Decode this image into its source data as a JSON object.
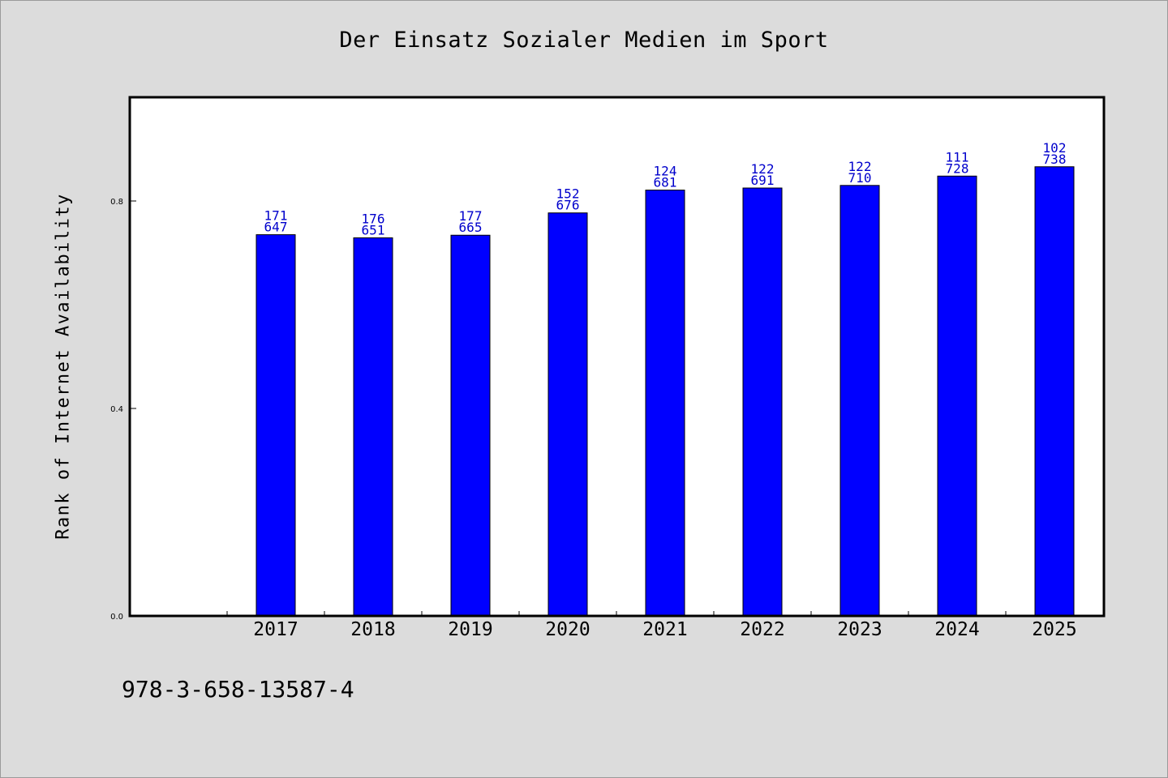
{
  "chart_data": {
    "type": "bar",
    "title": "Der Einsatz Sozialer Medien im Sport",
    "ylabel": "Rank of Internet Availability",
    "xlabel": "",
    "categories": [
      "2017",
      "2018",
      "2019",
      "2020",
      "2021",
      "2022",
      "2023",
      "2024",
      "2025"
    ],
    "values": [
      0.735,
      0.729,
      0.734,
      0.777,
      0.821,
      0.825,
      0.83,
      0.848,
      0.866
    ],
    "data_labels": [
      [
        "171",
        "647"
      ],
      [
        "176",
        "651"
      ],
      [
        "177",
        "665"
      ],
      [
        "152",
        "676"
      ],
      [
        "124",
        "681"
      ],
      [
        "122",
        "691"
      ],
      [
        "122",
        "710"
      ],
      [
        "111",
        "728"
      ],
      [
        "102",
        "738"
      ]
    ],
    "ylim": [
      0,
      1.0
    ],
    "yticks": [
      {
        "value": 0.0,
        "label": "0.0"
      },
      {
        "value": 0.4,
        "label": "0.4"
      },
      {
        "value": 0.8,
        "label": "0.8"
      }
    ],
    "grid": false,
    "bar_color": "#0000ff",
    "label_color": "#0000cc",
    "background_color": "#dcdcdc",
    "plot_background": "#ffffff"
  },
  "footnote": "978-3-658-13587-4"
}
